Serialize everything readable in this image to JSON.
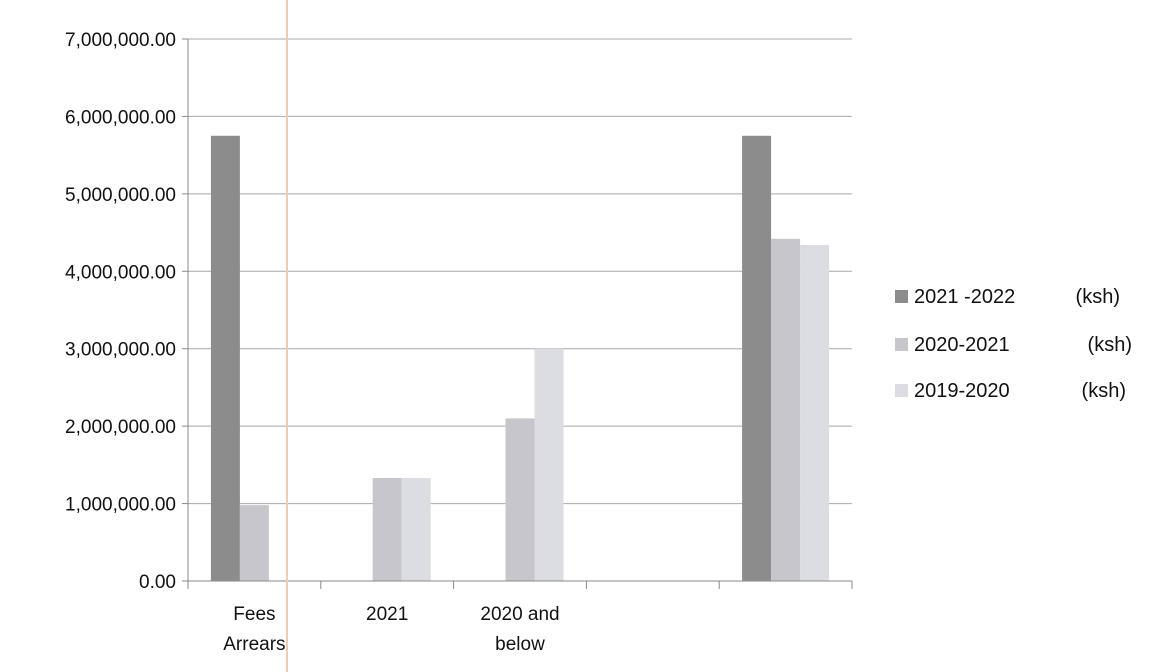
{
  "chart_data": {
    "type": "bar",
    "categories": [
      [
        "Fees",
        "Arrears"
      ],
      [
        "2021"
      ],
      [
        "2020 and",
        "below"
      ],
      [
        ""
      ],
      [
        ""
      ]
    ],
    "series": [
      {
        "legend_label": "2021 -2022",
        "legend_unit": "(ksh)",
        "color": "#8c8c8c",
        "values": [
          5750000,
          0,
          0,
          0,
          5750000
        ]
      },
      {
        "legend_label": "2020-2021",
        "legend_unit": "(ksh)",
        "color": "#c6c6cc",
        "values": [
          980000,
          1330000,
          2100000,
          0,
          4420000
        ]
      },
      {
        "legend_label": "2019-2020",
        "legend_unit": "(ksh)",
        "color": "#dcdde2",
        "values": [
          0,
          1330000,
          3000000,
          0,
          4340000
        ]
      }
    ],
    "ylim": [
      0,
      7000000
    ],
    "y_ticks": [
      "0.00",
      "1,000,000.00",
      "2,000,000.00",
      "3,000,000.00",
      "4,000,000.00",
      "5,000,000.00",
      "6,000,000.00",
      "7,000,000.00"
    ],
    "y_tick_values": [
      0,
      1000000,
      2000000,
      3000000,
      4000000,
      5000000,
      6000000,
      7000000
    ],
    "grid": true,
    "legend_position": "right"
  }
}
